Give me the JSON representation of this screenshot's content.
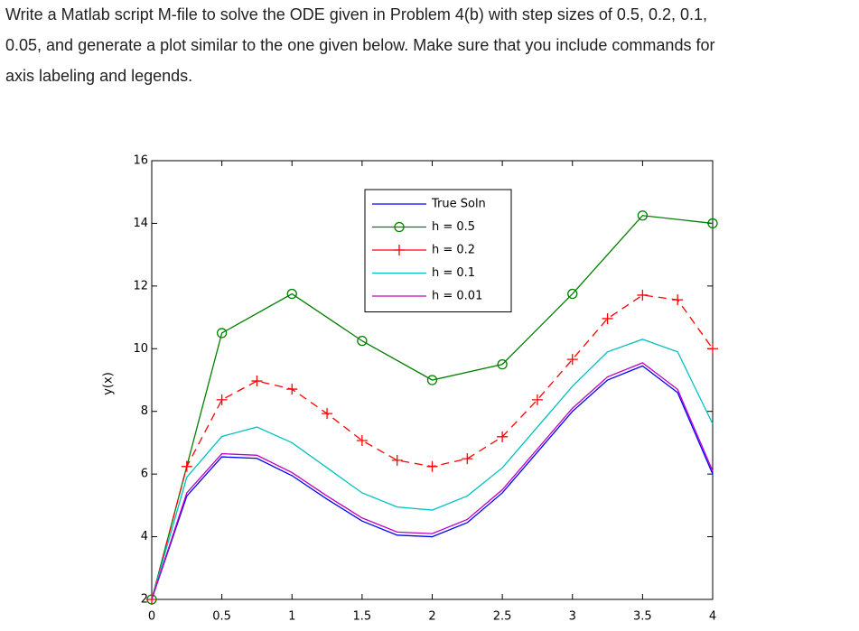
{
  "instructions": [
    "Write a Matlab script M-file to solve the ODE given in Problem 4(b) with step sizes of 0.5, 0.2, 0.1,",
    "0.05, and generate a plot similar to the one given below. Make sure that you include commands for",
    "axis labeling and legends."
  ],
  "chart_data": {
    "type": "line",
    "ylabel": "y(x)",
    "xlim": [
      0,
      4
    ],
    "ylim": [
      2,
      16
    ],
    "xticks": [
      0,
      0.5,
      1,
      1.5,
      2,
      2.5,
      3,
      3.5,
      4
    ],
    "yticks": [
      2,
      4,
      6,
      8,
      10,
      12,
      14,
      16
    ],
    "series": [
      {
        "name": "True Soln",
        "color": "#0000ff",
        "marker": "none",
        "linestyle": "-",
        "x": [
          0,
          0.25,
          0.5,
          0.75,
          1,
          1.25,
          1.5,
          1.75,
          2,
          2.25,
          2.5,
          2.75,
          3,
          3.25,
          3.5,
          3.75,
          4
        ],
        "values": [
          2,
          5.3,
          6.55,
          6.5,
          5.95,
          5.2,
          4.5,
          4.05,
          4.0,
          4.45,
          5.4,
          6.7,
          8.0,
          9.0,
          9.45,
          8.6,
          6.0
        ]
      },
      {
        "name": "h = 0.5",
        "color": "#008000",
        "marker": "o",
        "linestyle": "-",
        "x": [
          0,
          0.5,
          1,
          1.5,
          2,
          2.5,
          3,
          3.5,
          4
        ],
        "values": [
          2,
          10.5,
          11.75,
          10.25,
          9.0,
          9.5,
          11.75,
          14.25,
          14.0
        ]
      },
      {
        "name": "h = 0.2",
        "color": "#ff0000",
        "marker": "+",
        "linestyle": "--",
        "x": [
          0,
          0.25,
          0.5,
          0.75,
          1,
          1.25,
          1.5,
          1.75,
          2,
          2.25,
          2.5,
          2.75,
          3,
          3.25,
          3.5,
          3.75,
          4
        ],
        "values": [
          2,
          6.24,
          8.37,
          8.97,
          8.71,
          7.93,
          7.07,
          6.44,
          6.24,
          6.49,
          7.19,
          8.37,
          9.66,
          10.96,
          11.71,
          11.56,
          10.0
        ]
      },
      {
        "name": "h = 0.1",
        "color": "#00c0c0",
        "marker": "none",
        "linestyle": "-",
        "x": [
          0,
          0.25,
          0.5,
          0.75,
          1,
          1.25,
          1.5,
          1.75,
          2,
          2.25,
          2.5,
          2.75,
          3,
          3.25,
          3.5,
          3.75,
          4
        ],
        "values": [
          2,
          5.9,
          7.2,
          7.5,
          7.0,
          6.2,
          5.4,
          4.95,
          4.85,
          5.3,
          6.2,
          7.5,
          8.8,
          9.9,
          10.3,
          9.9,
          7.6
        ]
      },
      {
        "name": "h = 0.01",
        "color": "#c000c0",
        "marker": "none",
        "linestyle": "-",
        "x": [
          0,
          0.25,
          0.5,
          0.75,
          1,
          1.25,
          1.5,
          1.75,
          2,
          2.25,
          2.5,
          2.75,
          3,
          3.25,
          3.5,
          3.75,
          4
        ],
        "values": [
          2,
          5.4,
          6.65,
          6.6,
          6.05,
          5.3,
          4.6,
          4.15,
          4.1,
          4.55,
          5.5,
          6.8,
          8.1,
          9.1,
          9.55,
          8.7,
          6.1
        ]
      }
    ]
  }
}
